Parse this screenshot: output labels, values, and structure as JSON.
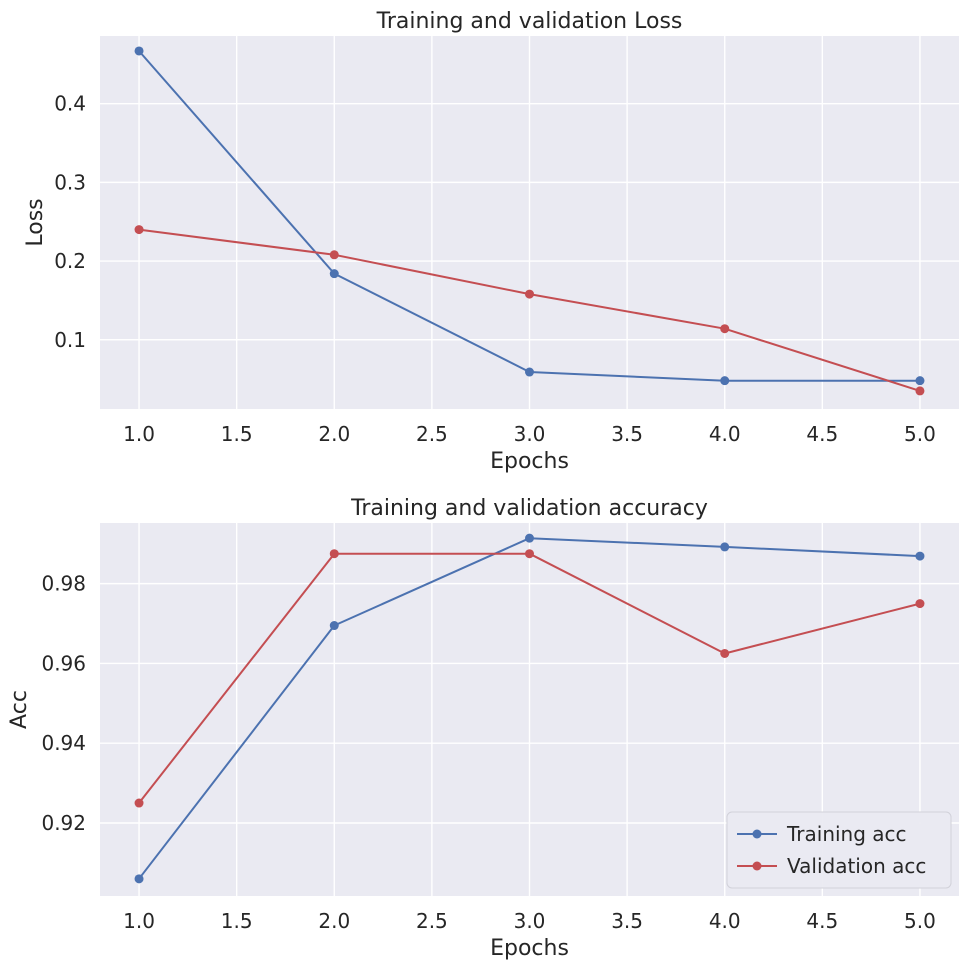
{
  "chart_data": [
    {
      "type": "line",
      "title": "Training and validation Loss",
      "xlabel": "Epochs",
      "ylabel": "Loss",
      "xlim": [
        0.8,
        5.2
      ],
      "ylim": [
        0.012,
        0.486
      ],
      "xticks": [
        1.0,
        1.5,
        2.0,
        2.5,
        3.0,
        3.5,
        4.0,
        4.5,
        5.0
      ],
      "xtick_labels": [
        "1.0",
        "1.5",
        "2.0",
        "2.5",
        "3.0",
        "3.5",
        "4.0",
        "4.5",
        "5.0"
      ],
      "yticks": [
        0.1,
        0.2,
        0.3,
        0.4
      ],
      "ytick_labels": [
        "0.1",
        "0.2",
        "0.3",
        "0.4"
      ],
      "grid": true,
      "x": [
        1,
        2,
        3,
        4,
        5
      ],
      "series": [
        {
          "key": "train",
          "color": "#4c72b0",
          "values": [
            0.467,
            0.184,
            0.059,
            0.048,
            0.048
          ]
        },
        {
          "key": "val",
          "color": "#c44e52",
          "values": [
            0.24,
            0.208,
            0.158,
            0.114,
            0.035
          ]
        }
      ]
    },
    {
      "type": "line",
      "title": "Training and validation accuracy",
      "xlabel": "Epochs",
      "ylabel": "Acc",
      "xlim": [
        0.8,
        5.2
      ],
      "ylim": [
        0.9017,
        0.9952
      ],
      "xticks": [
        1.0,
        1.5,
        2.0,
        2.5,
        3.0,
        3.5,
        4.0,
        4.5,
        5.0
      ],
      "xtick_labels": [
        "1.0",
        "1.5",
        "2.0",
        "2.5",
        "3.0",
        "3.5",
        "4.0",
        "4.5",
        "5.0"
      ],
      "yticks": [
        0.92,
        0.94,
        0.96,
        0.98
      ],
      "ytick_labels": [
        "0.92",
        "0.94",
        "0.96",
        "0.98"
      ],
      "grid": true,
      "legend": "lower-right",
      "x": [
        1,
        2,
        3,
        4,
        5
      ],
      "series": [
        {
          "key": "train",
          "name": "Training acc",
          "color": "#4c72b0",
          "values": [
            0.906,
            0.9695,
            0.9914,
            0.9892,
            0.9869
          ]
        },
        {
          "key": "val",
          "name": "Validation acc",
          "color": "#c44e52",
          "values": [
            0.925,
            0.9875,
            0.9875,
            0.9625,
            0.975
          ]
        }
      ]
    }
  ]
}
